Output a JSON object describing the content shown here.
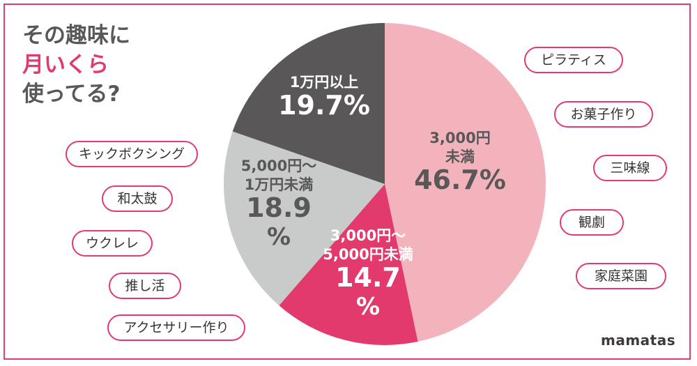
{
  "title": {
    "line1": "その趣味に",
    "line2": "月いくら",
    "line3": "使ってる?"
  },
  "hobbies_left": [
    "キックボクシング",
    "和太鼓",
    "ウクレレ",
    "推し活",
    "アクセサリー作り"
  ],
  "hobbies_right": [
    "ピラティス",
    "お菓子作り",
    "三味線",
    "観劇",
    "家庭菜園"
  ],
  "brand": "mamatas",
  "colors": {
    "accent": "#e23a6c",
    "title_gray": "#595757"
  },
  "chart_data": {
    "type": "pie",
    "slices": [
      {
        "label_lines": [
          "3,000円",
          "未満"
        ],
        "value_text": [
          "46.7%"
        ],
        "value": 46.7,
        "color": "#f3b3bd",
        "text_color": "#595757"
      },
      {
        "label_lines": [
          "3,000円～",
          "5,000円未満"
        ],
        "value_text": [
          "14.7",
          "%"
        ],
        "value": 14.7,
        "color": "#e23a6c",
        "text_color": "#ffffff"
      },
      {
        "label_lines": [
          "5,000円～",
          "1万円未満"
        ],
        "value_text": [
          "18.9",
          "%"
        ],
        "value": 18.9,
        "color": "#c9caca",
        "text_color": "#595757"
      },
      {
        "label_lines": [
          "1万円以上"
        ],
        "value_text": [
          "19.7%"
        ],
        "value": 19.7,
        "color": "#595757",
        "text_color": "#ffffff"
      }
    ]
  }
}
